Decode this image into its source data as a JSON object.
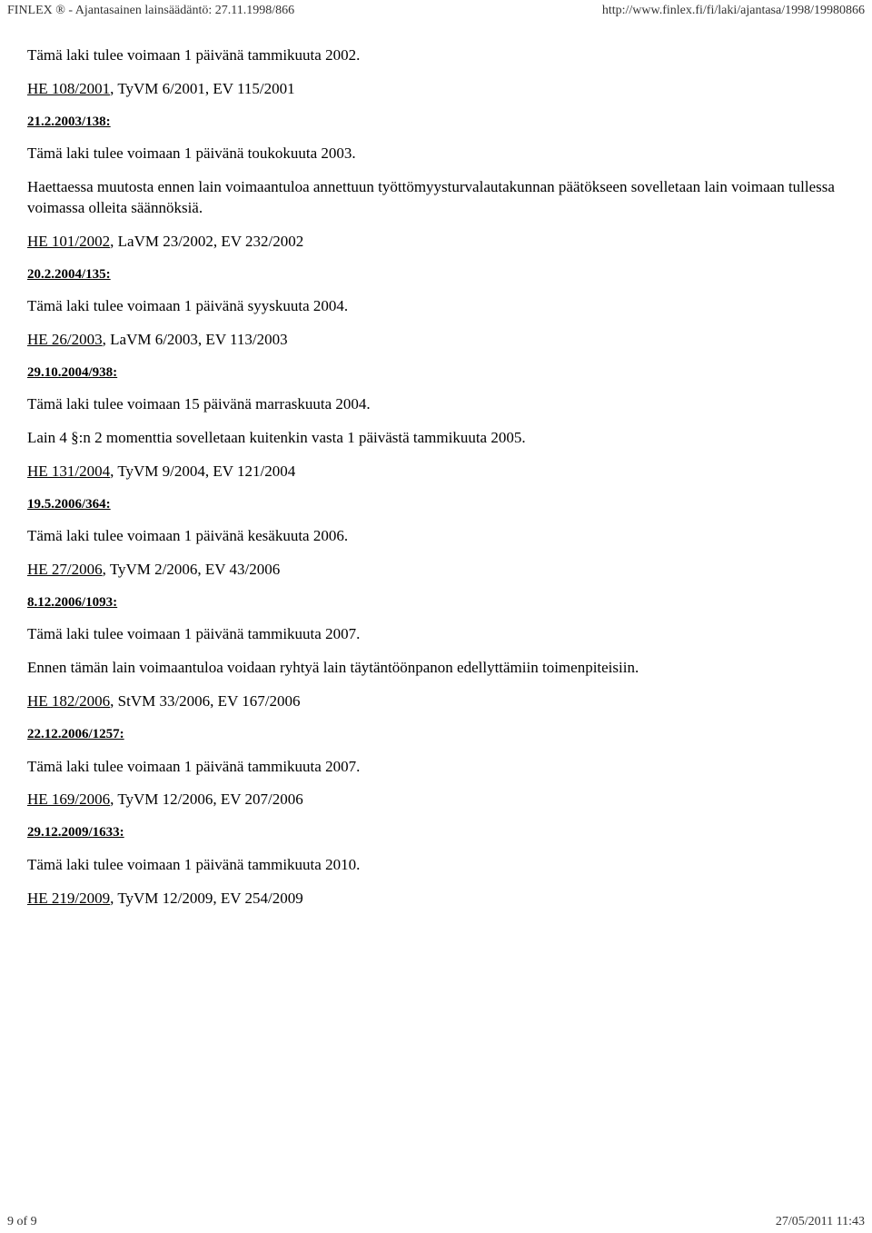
{
  "header": {
    "left": "FINLEX ® - Ajantasainen lainsäädäntö: 27.11.1998/866",
    "right": "http://www.finlex.fi/fi/laki/ajantasa/1998/19980866"
  },
  "sections": [
    {
      "paras": [
        "Tämä laki tulee voimaan 1 päivänä tammikuuta 2002."
      ],
      "ref_link": "HE 108/2001",
      "ref_rest": ", TyVM 6/2001, EV 115/2001"
    },
    {
      "head": "21.2.2003/138:",
      "paras": [
        "Tämä laki tulee voimaan 1 päivänä toukokuuta 2003.",
        "Haettaessa muutosta ennen lain voimaantuloa annettuun työttömyysturvalautakunnan päätökseen sovelletaan lain voimaan tullessa voimassa olleita säännöksiä."
      ],
      "ref_link": "HE 101/2002",
      "ref_rest": ", LaVM 23/2002, EV 232/2002"
    },
    {
      "head": "20.2.2004/135:",
      "paras": [
        "Tämä laki tulee voimaan 1 päivänä syyskuuta 2004."
      ],
      "ref_link": "HE 26/2003",
      "ref_rest": ", LaVM 6/2003, EV 113/2003"
    },
    {
      "head": "29.10.2004/938:",
      "paras": [
        "Tämä laki tulee voimaan 15 päivänä marraskuuta 2004.",
        "Lain 4 §:n 2 momenttia sovelletaan kuitenkin vasta 1 päivästä tammikuuta 2005."
      ],
      "ref_link": "HE 131/2004",
      "ref_rest": ", TyVM 9/2004, EV 121/2004"
    },
    {
      "head": "19.5.2006/364:",
      "paras": [
        "Tämä laki tulee voimaan 1 päivänä kesäkuuta 2006."
      ],
      "ref_link": "HE 27/2006",
      "ref_rest": ", TyVM 2/2006, EV 43/2006"
    },
    {
      "head": "8.12.2006/1093:",
      "paras": [
        "Tämä laki tulee voimaan 1 päivänä tammikuuta 2007.",
        "Ennen tämän lain voimaantuloa voidaan ryhtyä lain täytäntöönpanon edellyttämiin toimenpiteisiin."
      ],
      "ref_link": "HE 182/2006",
      "ref_rest": ", StVM 33/2006, EV 167/2006"
    },
    {
      "head": "22.12.2006/1257:",
      "paras": [
        "Tämä laki tulee voimaan 1 päivänä tammikuuta 2007."
      ],
      "ref_link": "HE 169/2006",
      "ref_rest": ", TyVM 12/2006, EV 207/2006"
    },
    {
      "head": "29.12.2009/1633:",
      "paras": [
        "Tämä laki tulee voimaan 1 päivänä tammikuuta 2010."
      ],
      "ref_link": "HE 219/2009",
      "ref_rest": ", TyVM 12/2009, EV 254/2009"
    }
  ],
  "footer": {
    "left": "9 of 9",
    "right": "27/05/2011 11:43"
  }
}
